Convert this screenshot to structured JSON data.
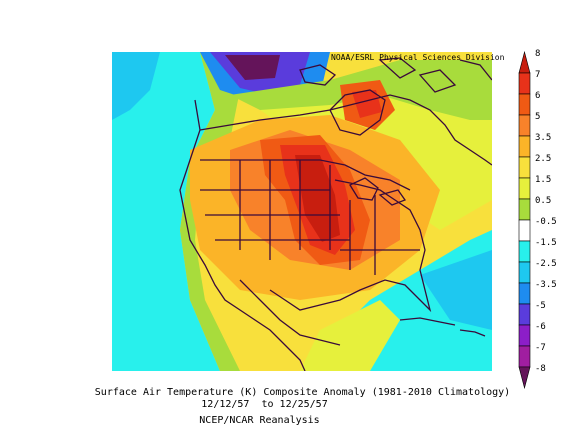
{
  "map": {
    "credit": "NOAA/ESRL Physical Sciences Division",
    "caption_line1": "Surface Air Temperature (K) Composite Anomaly (1981-2010 Climatology)",
    "caption_line2": "12/12/57  to 12/25/57",
    "caption_line3": "NCEP/NCAR Reanalysis",
    "region": "North America",
    "variable": "Surface Air Temperature anomaly",
    "units": "K"
  },
  "colorbar": {
    "labels": [
      "8",
      "7",
      "6",
      "5",
      "3.5",
      "2.5",
      "1.5",
      "0.5",
      "-0.5",
      "-1.5",
      "-2.5",
      "-3.5",
      "-5",
      "-6",
      "-7",
      "-8"
    ],
    "colors": [
      "#c81e0f",
      "#e8321a",
      "#f05a14",
      "#f8822a",
      "#fbb428",
      "#f8e03c",
      "#e6f03c",
      "#a8dc3c",
      "#ffffff",
      "#28f0ec",
      "#1ec8f0",
      "#1e8cf0",
      "#5a3cdc",
      "#8c1ec8",
      "#a01ea0",
      "#64145a"
    ]
  }
}
